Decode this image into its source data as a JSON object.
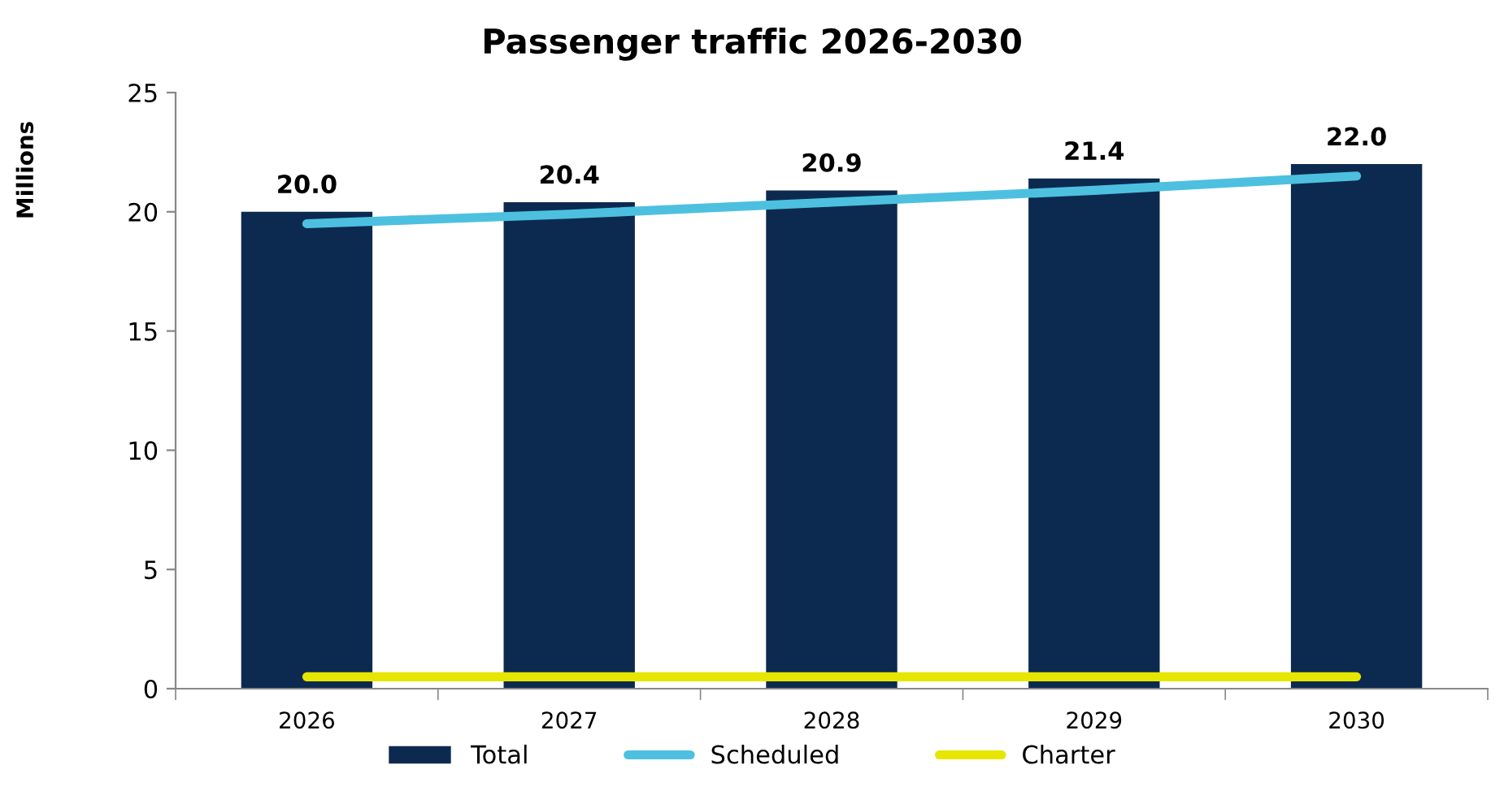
{
  "chart_data": {
    "type": "bar",
    "title": "Passenger traffic 2026-2030",
    "ylabel": "Millions",
    "categories": [
      "2026",
      "2027",
      "2028",
      "2029",
      "2030"
    ],
    "series": [
      {
        "name": "Total",
        "color": "#0c2a4f",
        "values": [
          20.0,
          20.4,
          20.9,
          21.4,
          22.0
        ],
        "value_labels": [
          "20.0",
          "20.4",
          "20.9",
          "21.4",
          "22.0"
        ]
      },
      {
        "name": "Scheduled",
        "type": "line",
        "color": "#4dc0e0",
        "values": [
          19.5,
          19.9,
          20.4,
          20.9,
          21.5
        ]
      },
      {
        "name": "Charter",
        "type": "line",
        "color": "#e6e600",
        "values": [
          0.5,
          0.5,
          0.5,
          0.5,
          0.5
        ]
      }
    ],
    "ylim": [
      0,
      25
    ],
    "yticks": [
      0,
      5,
      10,
      15,
      20,
      25
    ],
    "grid": false,
    "legend": "bottom"
  }
}
